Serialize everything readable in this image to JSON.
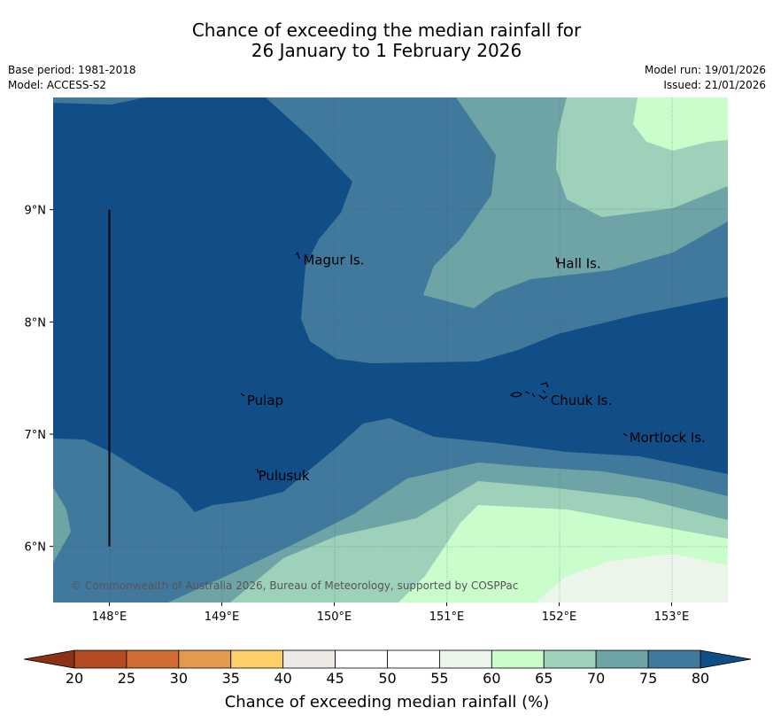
{
  "title": {
    "line1": "Chance of exceeding the median rainfall for",
    "line2": "26 January to 1 February 2026"
  },
  "meta": {
    "base_period": "Base period: 1981-2018",
    "model": "Model: ACCESS-S2",
    "model_run": "Model run: 19/01/2026",
    "issued": "Issued: 21/01/2026"
  },
  "map": {
    "lon_range": [
      147.5,
      153.5
    ],
    "lat_range": [
      5.5,
      10.0
    ],
    "x_ticks": [
      {
        "lon": 148,
        "label": "148°E"
      },
      {
        "lon": 149,
        "label": "149°E"
      },
      {
        "lon": 150,
        "label": "150°E"
      },
      {
        "lon": 151,
        "label": "151°E"
      },
      {
        "lon": 152,
        "label": "152°E"
      },
      {
        "lon": 153,
        "label": "153°E"
      }
    ],
    "y_ticks": [
      {
        "lat": 9,
        "label": "9°N"
      },
      {
        "lat": 8,
        "label": "8°N"
      },
      {
        "lat": 7,
        "label": "7°N"
      },
      {
        "lat": 6,
        "label": "6°N"
      }
    ],
    "places": [
      {
        "name": "Magur Is.",
        "lon": 149.7,
        "lat": 8.55
      },
      {
        "name": "Hall Is.",
        "lon": 151.95,
        "lat": 8.52
      },
      {
        "name": "Pulap",
        "lon": 149.2,
        "lat": 7.3
      },
      {
        "name": "Chuuk Is.",
        "lon": 151.9,
        "lat": 7.3
      },
      {
        "name": "Mortlock Is.",
        "lon": 152.6,
        "lat": 6.97
      },
      {
        "name": "Pulusuk",
        "lon": 149.3,
        "lat": 6.63
      }
    ],
    "meridian_line": {
      "lon": 148,
      "lat_from": 6.0,
      "lat_to": 9.0
    },
    "copyright": "© Commonwealth of Australia 2026, Bureau of Meteorology, supported by COSPPac"
  },
  "colorbar": {
    "title": "Chance of exceeding median rainfall (%)",
    "ticks": [
      "20",
      "25",
      "30",
      "35",
      "40",
      "45",
      "50",
      "55",
      "60",
      "65",
      "70",
      "75",
      "80"
    ],
    "colors": [
      "#b54a23",
      "#d26a34",
      "#e39a4f",
      "#fdd067",
      "#ece9e4",
      "#ffffff",
      "#ffffff",
      "#ebf5ea",
      "#c9fdcb",
      "#9dd1ba",
      "#6fa4a6",
      "#41799c"
    ],
    "under_color": "#8c3017",
    "over_color": "#114d87"
  }
}
